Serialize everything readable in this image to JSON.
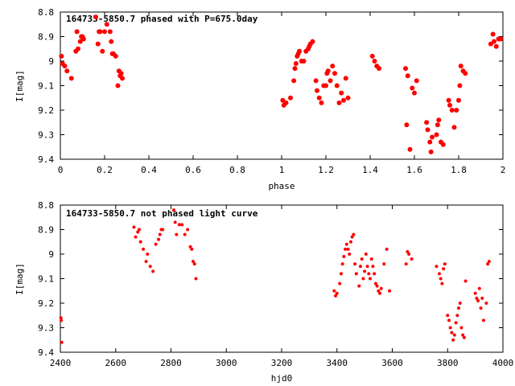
{
  "chart_data": [
    {
      "type": "scatter",
      "title": "164733-5850.7 phased with P=675.0day",
      "xlabel": "phase",
      "ylabel": "I[mag]",
      "xlim": [
        0,
        2
      ],
      "ylim": [
        9.4,
        8.8
      ],
      "y_inverted": true,
      "grid": false,
      "marker_color": "#ff0000",
      "marker": "filled-circle",
      "x_ticks": [
        0,
        0.2,
        0.4,
        0.6,
        0.8,
        1,
        1.2,
        1.4,
        1.6,
        1.8,
        2
      ],
      "x_tick_labels": [
        "0",
        "0.2",
        "0.4",
        "0.6",
        "0.8",
        "1",
        "1.2",
        "1.4",
        "1.6",
        "1.8",
        "2"
      ],
      "y_ticks": [
        8.8,
        8.9,
        9.0,
        9.1,
        9.2,
        9.3,
        9.4
      ],
      "y_tick_labels": [
        "8.8",
        "8.9",
        "9",
        "9.1",
        "9.2",
        "9.3",
        "9.4"
      ],
      "x": [
        0.005,
        0.01,
        0.02,
        0.03,
        0.05,
        0.07,
        0.075,
        0.08,
        0.09,
        0.095,
        0.1,
        0.105,
        0.16,
        0.17,
        0.175,
        0.18,
        0.19,
        0.2,
        0.21,
        0.225,
        0.23,
        0.235,
        0.24,
        0.25,
        0.26,
        0.265,
        0.27,
        0.275,
        0.28,
        1.005,
        1.01,
        1.02,
        1.04,
        1.055,
        1.06,
        1.065,
        1.07,
        1.075,
        1.08,
        1.09,
        1.1,
        1.11,
        1.12,
        1.125,
        1.13,
        1.14,
        1.155,
        1.16,
        1.17,
        1.18,
        1.19,
        1.2,
        1.205,
        1.21,
        1.22,
        1.23,
        1.24,
        1.25,
        1.26,
        1.27,
        1.28,
        1.29,
        1.3,
        1.41,
        1.42,
        1.43,
        1.44,
        1.56,
        1.565,
        1.57,
        1.58,
        1.59,
        1.6,
        1.61,
        1.655,
        1.66,
        1.67,
        1.675,
        1.68,
        1.7,
        1.705,
        1.71,
        1.72,
        1.73,
        1.755,
        1.76,
        1.77,
        1.78,
        1.79,
        1.8,
        1.805,
        1.81,
        1.82,
        1.83,
        1.945,
        1.955,
        1.96,
        1.97,
        1.98,
        1.99
      ],
      "y": [
        8.98,
        9.01,
        9.02,
        9.04,
        9.07,
        8.96,
        8.88,
        8.95,
        8.92,
        8.9,
        8.9,
        8.91,
        8.82,
        8.93,
        8.88,
        8.88,
        8.96,
        8.88,
        8.85,
        8.88,
        8.92,
        8.97,
        8.97,
        8.98,
        9.1,
        9.04,
        9.06,
        9.05,
        9.07,
        9.16,
        9.18,
        9.17,
        9.15,
        9.08,
        9.03,
        9.01,
        8.98,
        8.97,
        8.96,
        9.0,
        9.0,
        8.96,
        8.95,
        8.94,
        8.93,
        8.92,
        9.08,
        9.12,
        9.15,
        9.17,
        9.1,
        9.1,
        9.05,
        9.04,
        9.08,
        9.02,
        9.05,
        9.1,
        9.17,
        9.13,
        9.16,
        9.07,
        9.15,
        8.98,
        9.0,
        9.02,
        9.03,
        9.03,
        9.26,
        9.06,
        9.36,
        9.11,
        9.13,
        9.08,
        9.25,
        9.28,
        9.33,
        9.37,
        9.31,
        9.3,
        9.26,
        9.24,
        9.33,
        9.34,
        9.16,
        9.18,
        9.2,
        9.27,
        9.2,
        9.16,
        9.1,
        9.02,
        9.04,
        9.05,
        8.93,
        8.89,
        8.92,
        8.94,
        8.91,
        8.91
      ]
    },
    {
      "type": "scatter",
      "title": "164733-5850.7 not phased light curve",
      "xlabel": "hjd0",
      "ylabel": "I[mag]",
      "xlim": [
        2400,
        4000
      ],
      "ylim": [
        9.4,
        8.8
      ],
      "y_inverted": true,
      "grid": false,
      "marker_color": "#ff0000",
      "marker": "filled-circle",
      "x_ticks": [
        2400,
        2600,
        2800,
        3000,
        3200,
        3400,
        3600,
        3800,
        4000
      ],
      "x_tick_labels": [
        "2400",
        "2600",
        "2800",
        "3000",
        "3200",
        "3400",
        "3600",
        "3800",
        "4000"
      ],
      "y_ticks": [
        8.8,
        8.9,
        9.0,
        9.1,
        9.2,
        9.3,
        9.4
      ],
      "y_tick_labels": [
        "8.8",
        "8.9",
        "9",
        "9.1",
        "9.2",
        "9.3",
        "9.4"
      ],
      "x": [
        2402,
        2403,
        2405,
        2666,
        2672,
        2680,
        2685,
        2690,
        2700,
        2710,
        2715,
        2725,
        2735,
        2745,
        2755,
        2760,
        2765,
        2770,
        2810,
        2815,
        2820,
        2830,
        2840,
        2850,
        2860,
        2870,
        2875,
        2880,
        2885,
        2890,
        3390,
        3395,
        3400,
        3410,
        3415,
        3420,
        3425,
        3430,
        3435,
        3440,
        3445,
        3450,
        3455,
        3460,
        3465,
        3470,
        3480,
        3485,
        3490,
        3495,
        3500,
        3505,
        3510,
        3515,
        3520,
        3525,
        3530,
        3535,
        3540,
        3545,
        3550,
        3555,
        3560,
        3570,
        3580,
        3590,
        3650,
        3655,
        3660,
        3670,
        3760,
        3770,
        3775,
        3780,
        3785,
        3790,
        3800,
        3805,
        3810,
        3815,
        3820,
        3825,
        3830,
        3835,
        3840,
        3845,
        3850,
        3855,
        3860,
        3865,
        3900,
        3905,
        3910,
        3915,
        3920,
        3925,
        3930,
        3940,
        3945,
        3950
      ],
      "y": [
        9.26,
        9.27,
        9.36,
        8.89,
        8.93,
        8.91,
        8.9,
        8.95,
        8.98,
        9.03,
        9.0,
        9.05,
        9.07,
        8.96,
        8.94,
        8.92,
        8.9,
        8.9,
        8.82,
        8.87,
        8.92,
        8.88,
        8.88,
        8.92,
        8.9,
        8.97,
        8.98,
        9.03,
        9.04,
        9.1,
        9.15,
        9.17,
        9.16,
        9.12,
        9.08,
        9.04,
        9.01,
        8.98,
        8.96,
        8.98,
        9.0,
        8.95,
        8.93,
        8.92,
        9.04,
        9.08,
        9.13,
        9.05,
        9.02,
        9.1,
        9.07,
        9.0,
        9.05,
        9.08,
        9.1,
        9.02,
        9.05,
        9.08,
        9.12,
        9.13,
        9.15,
        9.16,
        9.14,
        9.04,
        8.98,
        9.15,
        9.04,
        8.99,
        9.0,
        9.02,
        9.05,
        9.08,
        9.1,
        9.12,
        9.06,
        9.04,
        9.25,
        9.27,
        9.3,
        9.32,
        9.35,
        9.33,
        9.28,
        9.25,
        9.22,
        9.2,
        9.3,
        9.33,
        9.34,
        9.11,
        9.16,
        9.18,
        9.19,
        9.14,
        9.22,
        9.18,
        9.27,
        9.2,
        9.04,
        9.03
      ]
    }
  ]
}
